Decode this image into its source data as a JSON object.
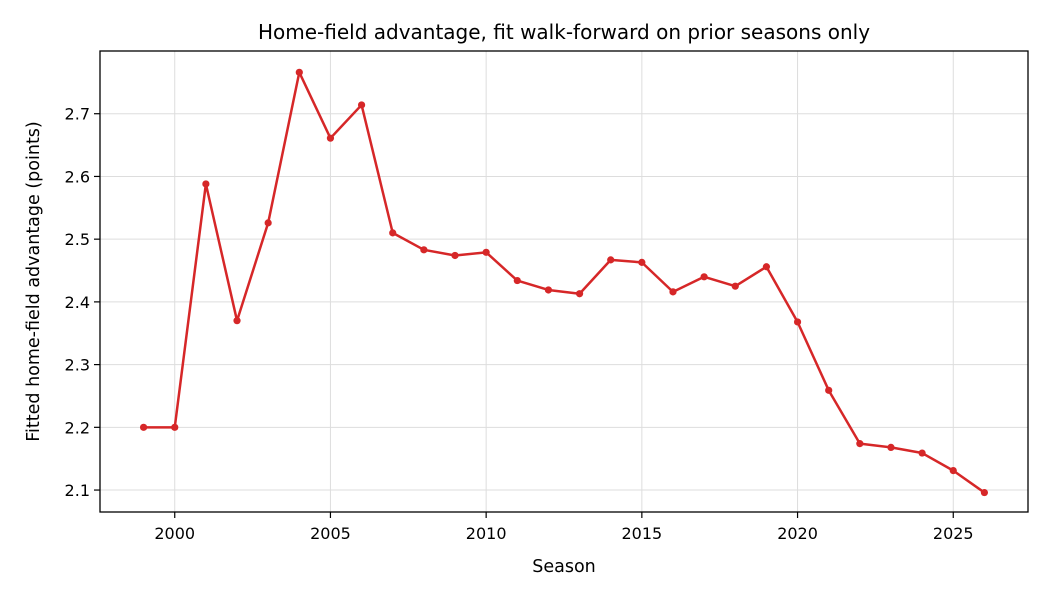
{
  "chart_data": {
    "type": "line",
    "title": "Home-field advantage, fit walk-forward on prior seasons only",
    "xlabel": "Season",
    "ylabel": "Fitted home-field advantage (points)",
    "xlim": [
      1997.6,
      2027.4
    ],
    "ylim": [
      2.065,
      2.8
    ],
    "xticks": [
      2000,
      2005,
      2010,
      2015,
      2020,
      2025
    ],
    "yticks": [
      2.1,
      2.2,
      2.3,
      2.4,
      2.5,
      2.6,
      2.7
    ],
    "xtick_labels": [
      "2000",
      "2005",
      "2010",
      "2015",
      "2020",
      "2025"
    ],
    "ytick_labels": [
      "2.1",
      "2.2",
      "2.3",
      "2.4",
      "2.5",
      "2.6",
      "2.7"
    ],
    "grid": true,
    "series": [
      {
        "color": "#d62728",
        "x": [
          1999,
          2000,
          2001,
          2002,
          2003,
          2004,
          2005,
          2006,
          2007,
          2008,
          2009,
          2010,
          2011,
          2012,
          2013,
          2014,
          2015,
          2016,
          2017,
          2018,
          2019,
          2020,
          2021,
          2022,
          2023,
          2024,
          2025,
          2026
        ],
        "y": [
          2.2,
          2.2,
          2.588,
          2.37,
          2.526,
          2.766,
          2.661,
          2.714,
          2.51,
          2.483,
          2.474,
          2.479,
          2.434,
          2.419,
          2.413,
          2.467,
          2.463,
          2.416,
          2.44,
          2.425,
          2.456,
          2.368,
          2.259,
          2.174,
          2.168,
          2.159,
          2.131,
          2.096
        ]
      }
    ]
  }
}
